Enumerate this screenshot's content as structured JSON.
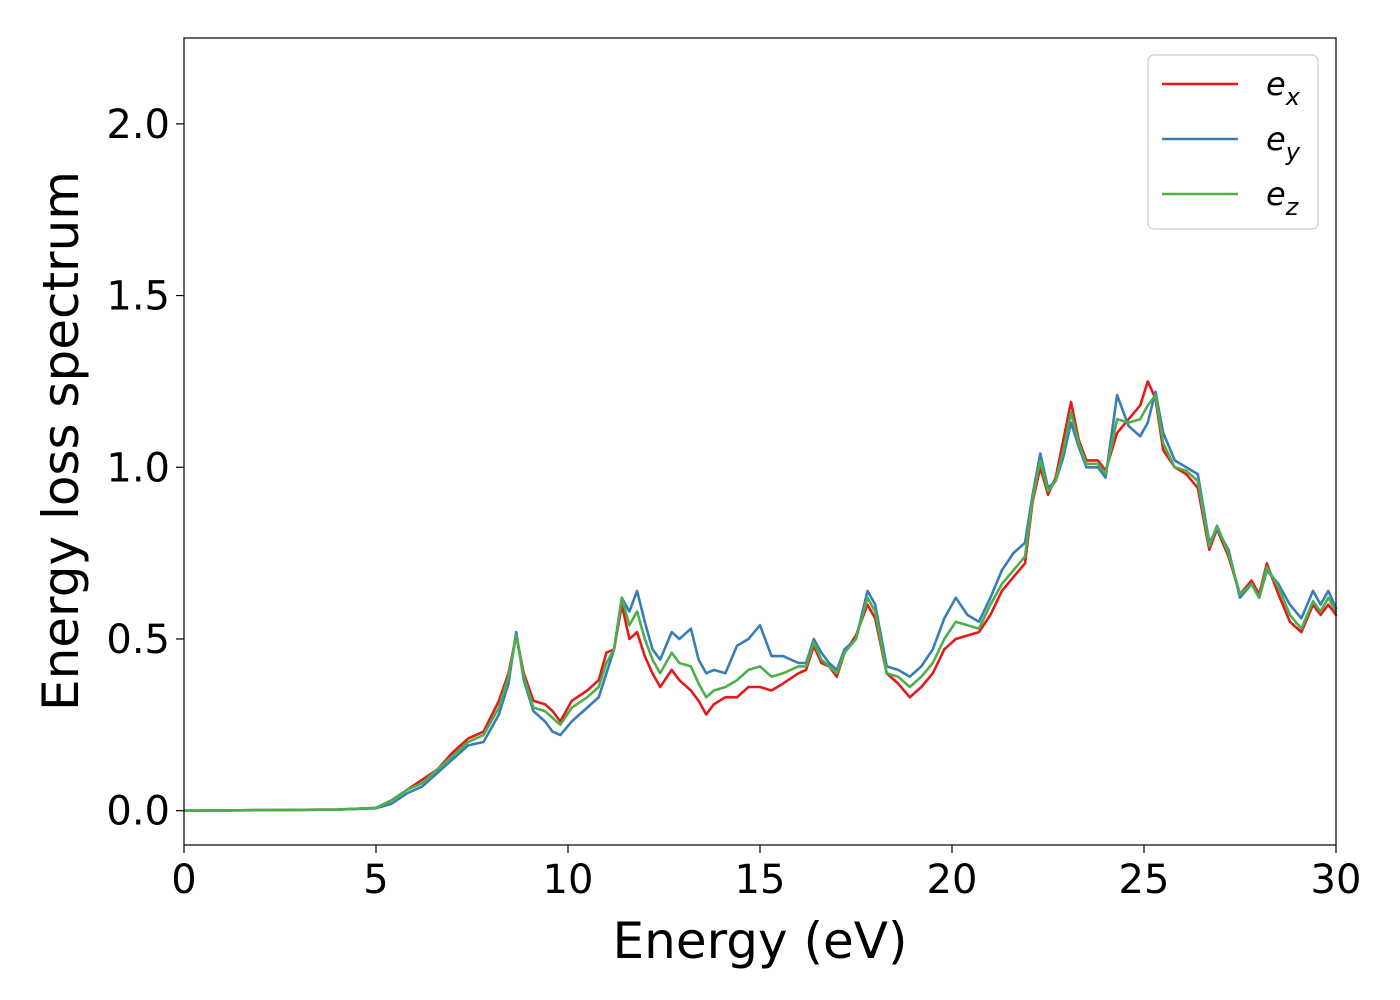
{
  "chart_data": {
    "type": "line",
    "title": "",
    "xlabel": "Energy (eV)",
    "ylabel": "Energy loss spectrum",
    "xlim": [
      0,
      30
    ],
    "ylim": [
      -0.1,
      2.25
    ],
    "x_ticks": [
      0,
      5,
      10,
      15,
      20,
      25,
      30
    ],
    "x_tick_labels": [
      "0",
      "5",
      "10",
      "15",
      "20",
      "25",
      "30"
    ],
    "y_ticks": [
      0.0,
      0.5,
      1.0,
      1.5,
      2.0
    ],
    "y_tick_labels": [
      "0.0",
      "0.5",
      "1.0",
      "1.5",
      "2.0"
    ],
    "grid": false,
    "legend_position": "top-right",
    "series": [
      {
        "name": "e_x",
        "color": "#e41a1c",
        "points": [
          [
            0,
            0
          ],
          [
            4,
            0.003
          ],
          [
            5,
            0.008
          ],
          [
            5.4,
            0.03
          ],
          [
            5.8,
            0.06
          ],
          [
            6.2,
            0.09
          ],
          [
            6.6,
            0.12
          ],
          [
            7.0,
            0.17
          ],
          [
            7.4,
            0.21
          ],
          [
            7.8,
            0.23
          ],
          [
            8.2,
            0.32
          ],
          [
            8.45,
            0.4
          ],
          [
            8.65,
            0.51
          ],
          [
            8.85,
            0.4
          ],
          [
            9.1,
            0.32
          ],
          [
            9.4,
            0.31
          ],
          [
            9.6,
            0.29
          ],
          [
            9.8,
            0.26
          ],
          [
            10.1,
            0.32
          ],
          [
            10.5,
            0.35
          ],
          [
            10.8,
            0.38
          ],
          [
            11.0,
            0.46
          ],
          [
            11.2,
            0.47
          ],
          [
            11.4,
            0.6
          ],
          [
            11.6,
            0.5
          ],
          [
            11.8,
            0.52
          ],
          [
            12.0,
            0.45
          ],
          [
            12.2,
            0.4
          ],
          [
            12.4,
            0.36
          ],
          [
            12.7,
            0.41
          ],
          [
            12.9,
            0.38
          ],
          [
            13.2,
            0.35
          ],
          [
            13.4,
            0.32
          ],
          [
            13.6,
            0.28
          ],
          [
            13.8,
            0.31
          ],
          [
            14.1,
            0.33
          ],
          [
            14.4,
            0.33
          ],
          [
            14.7,
            0.36
          ],
          [
            15.0,
            0.36
          ],
          [
            15.3,
            0.35
          ],
          [
            15.6,
            0.37
          ],
          [
            16.0,
            0.4
          ],
          [
            16.2,
            0.41
          ],
          [
            16.4,
            0.48
          ],
          [
            16.6,
            0.43
          ],
          [
            16.8,
            0.42
          ],
          [
            17.0,
            0.39
          ],
          [
            17.2,
            0.46
          ],
          [
            17.5,
            0.51
          ],
          [
            17.8,
            0.6
          ],
          [
            18.0,
            0.56
          ],
          [
            18.3,
            0.4
          ],
          [
            18.6,
            0.37
          ],
          [
            18.9,
            0.33
          ],
          [
            19.2,
            0.36
          ],
          [
            19.5,
            0.4
          ],
          [
            19.8,
            0.47
          ],
          [
            20.1,
            0.5
          ],
          [
            20.4,
            0.51
          ],
          [
            20.7,
            0.52
          ],
          [
            21.0,
            0.57
          ],
          [
            21.3,
            0.64
          ],
          [
            21.6,
            0.68
          ],
          [
            21.9,
            0.72
          ],
          [
            22.1,
            0.9
          ],
          [
            22.3,
            1.0
          ],
          [
            22.5,
            0.92
          ],
          [
            22.7,
            0.97
          ],
          [
            22.9,
            1.08
          ],
          [
            23.1,
            1.19
          ],
          [
            23.3,
            1.08
          ],
          [
            23.5,
            1.02
          ],
          [
            23.8,
            1.02
          ],
          [
            24.0,
            0.99
          ],
          [
            24.3,
            1.1
          ],
          [
            24.6,
            1.14
          ],
          [
            24.9,
            1.18
          ],
          [
            25.1,
            1.25
          ],
          [
            25.3,
            1.2
          ],
          [
            25.5,
            1.05
          ],
          [
            25.8,
            1.0
          ],
          [
            26.1,
            0.98
          ],
          [
            26.4,
            0.94
          ],
          [
            26.7,
            0.76
          ],
          [
            26.9,
            0.82
          ],
          [
            27.2,
            0.74
          ],
          [
            27.5,
            0.63
          ],
          [
            27.8,
            0.67
          ],
          [
            28.0,
            0.63
          ],
          [
            28.2,
            0.72
          ],
          [
            28.5,
            0.63
          ],
          [
            28.8,
            0.55
          ],
          [
            29.1,
            0.52
          ],
          [
            29.4,
            0.6
          ],
          [
            29.6,
            0.57
          ],
          [
            29.8,
            0.6
          ],
          [
            30.0,
            0.57
          ]
        ]
      },
      {
        "name": "e_y",
        "color": "#377eb8",
        "points": [
          [
            0,
            0
          ],
          [
            4,
            0.003
          ],
          [
            5,
            0.007
          ],
          [
            5.4,
            0.02
          ],
          [
            5.8,
            0.05
          ],
          [
            6.2,
            0.07
          ],
          [
            6.6,
            0.11
          ],
          [
            7.0,
            0.15
          ],
          [
            7.4,
            0.19
          ],
          [
            7.8,
            0.2
          ],
          [
            8.2,
            0.28
          ],
          [
            8.45,
            0.37
          ],
          [
            8.65,
            0.52
          ],
          [
            8.85,
            0.38
          ],
          [
            9.1,
            0.29
          ],
          [
            9.4,
            0.26
          ],
          [
            9.6,
            0.23
          ],
          [
            9.8,
            0.22
          ],
          [
            10.1,
            0.26
          ],
          [
            10.5,
            0.3
          ],
          [
            10.8,
            0.33
          ],
          [
            11.0,
            0.4
          ],
          [
            11.2,
            0.47
          ],
          [
            11.4,
            0.62
          ],
          [
            11.6,
            0.58
          ],
          [
            11.8,
            0.64
          ],
          [
            12.0,
            0.55
          ],
          [
            12.2,
            0.47
          ],
          [
            12.4,
            0.44
          ],
          [
            12.7,
            0.52
          ],
          [
            12.9,
            0.5
          ],
          [
            13.2,
            0.53
          ],
          [
            13.4,
            0.44
          ],
          [
            13.6,
            0.4
          ],
          [
            13.8,
            0.41
          ],
          [
            14.1,
            0.4
          ],
          [
            14.4,
            0.48
          ],
          [
            14.7,
            0.5
          ],
          [
            15.0,
            0.54
          ],
          [
            15.3,
            0.45
          ],
          [
            15.6,
            0.45
          ],
          [
            16.0,
            0.43
          ],
          [
            16.2,
            0.43
          ],
          [
            16.4,
            0.5
          ],
          [
            16.6,
            0.46
          ],
          [
            16.8,
            0.43
          ],
          [
            17.0,
            0.41
          ],
          [
            17.2,
            0.47
          ],
          [
            17.5,
            0.5
          ],
          [
            17.8,
            0.64
          ],
          [
            18.0,
            0.6
          ],
          [
            18.3,
            0.42
          ],
          [
            18.6,
            0.41
          ],
          [
            18.9,
            0.39
          ],
          [
            19.2,
            0.42
          ],
          [
            19.5,
            0.47
          ],
          [
            19.8,
            0.56
          ],
          [
            20.1,
            0.62
          ],
          [
            20.4,
            0.57
          ],
          [
            20.7,
            0.55
          ],
          [
            21.0,
            0.62
          ],
          [
            21.3,
            0.7
          ],
          [
            21.6,
            0.75
          ],
          [
            21.9,
            0.78
          ],
          [
            22.1,
            0.92
          ],
          [
            22.3,
            1.04
          ],
          [
            22.5,
            0.94
          ],
          [
            22.7,
            0.96
          ],
          [
            22.9,
            1.03
          ],
          [
            23.1,
            1.13
          ],
          [
            23.3,
            1.06
          ],
          [
            23.5,
            1.0
          ],
          [
            23.8,
            1.0
          ],
          [
            24.0,
            0.97
          ],
          [
            24.3,
            1.21
          ],
          [
            24.6,
            1.12
          ],
          [
            24.9,
            1.09
          ],
          [
            25.1,
            1.13
          ],
          [
            25.3,
            1.22
          ],
          [
            25.5,
            1.1
          ],
          [
            25.8,
            1.02
          ],
          [
            26.1,
            1.0
          ],
          [
            26.4,
            0.98
          ],
          [
            26.7,
            0.78
          ],
          [
            26.9,
            0.82
          ],
          [
            27.2,
            0.76
          ],
          [
            27.5,
            0.62
          ],
          [
            27.8,
            0.66
          ],
          [
            28.0,
            0.62
          ],
          [
            28.2,
            0.7
          ],
          [
            28.5,
            0.66
          ],
          [
            28.8,
            0.6
          ],
          [
            29.1,
            0.56
          ],
          [
            29.4,
            0.64
          ],
          [
            29.6,
            0.6
          ],
          [
            29.8,
            0.64
          ],
          [
            30.0,
            0.59
          ]
        ]
      },
      {
        "name": "e_z",
        "color": "#4daf4a",
        "points": [
          [
            0,
            0
          ],
          [
            4,
            0.003
          ],
          [
            5,
            0.008
          ],
          [
            5.4,
            0.03
          ],
          [
            5.8,
            0.06
          ],
          [
            6.2,
            0.08
          ],
          [
            6.6,
            0.12
          ],
          [
            7.0,
            0.16
          ],
          [
            7.4,
            0.2
          ],
          [
            7.8,
            0.22
          ],
          [
            8.2,
            0.3
          ],
          [
            8.45,
            0.39
          ],
          [
            8.65,
            0.51
          ],
          [
            8.85,
            0.39
          ],
          [
            9.1,
            0.3
          ],
          [
            9.4,
            0.29
          ],
          [
            9.6,
            0.27
          ],
          [
            9.8,
            0.25
          ],
          [
            10.1,
            0.3
          ],
          [
            10.5,
            0.33
          ],
          [
            10.8,
            0.36
          ],
          [
            11.0,
            0.43
          ],
          [
            11.2,
            0.47
          ],
          [
            11.4,
            0.62
          ],
          [
            11.6,
            0.54
          ],
          [
            11.8,
            0.58
          ],
          [
            12.0,
            0.5
          ],
          [
            12.2,
            0.44
          ],
          [
            12.4,
            0.4
          ],
          [
            12.7,
            0.46
          ],
          [
            12.9,
            0.43
          ],
          [
            13.2,
            0.42
          ],
          [
            13.4,
            0.37
          ],
          [
            13.6,
            0.33
          ],
          [
            13.8,
            0.35
          ],
          [
            14.1,
            0.36
          ],
          [
            14.4,
            0.38
          ],
          [
            14.7,
            0.41
          ],
          [
            15.0,
            0.42
          ],
          [
            15.3,
            0.39
          ],
          [
            15.6,
            0.4
          ],
          [
            16.0,
            0.42
          ],
          [
            16.2,
            0.42
          ],
          [
            16.4,
            0.49
          ],
          [
            16.6,
            0.44
          ],
          [
            16.8,
            0.42
          ],
          [
            17.0,
            0.4
          ],
          [
            17.2,
            0.46
          ],
          [
            17.5,
            0.5
          ],
          [
            17.8,
            0.62
          ],
          [
            18.0,
            0.58
          ],
          [
            18.3,
            0.4
          ],
          [
            18.6,
            0.39
          ],
          [
            18.9,
            0.36
          ],
          [
            19.2,
            0.39
          ],
          [
            19.5,
            0.43
          ],
          [
            19.8,
            0.5
          ],
          [
            20.1,
            0.55
          ],
          [
            20.4,
            0.54
          ],
          [
            20.7,
            0.53
          ],
          [
            21.0,
            0.6
          ],
          [
            21.3,
            0.66
          ],
          [
            21.6,
            0.7
          ],
          [
            21.9,
            0.74
          ],
          [
            22.1,
            0.91
          ],
          [
            22.3,
            1.02
          ],
          [
            22.5,
            0.93
          ],
          [
            22.7,
            0.96
          ],
          [
            22.9,
            1.05
          ],
          [
            23.1,
            1.16
          ],
          [
            23.3,
            1.07
          ],
          [
            23.5,
            1.01
          ],
          [
            23.8,
            1.01
          ],
          [
            24.0,
            0.98
          ],
          [
            24.3,
            1.14
          ],
          [
            24.6,
            1.13
          ],
          [
            24.9,
            1.14
          ],
          [
            25.1,
            1.18
          ],
          [
            25.3,
            1.21
          ],
          [
            25.5,
            1.07
          ],
          [
            25.8,
            1.0
          ],
          [
            26.1,
            0.99
          ],
          [
            26.4,
            0.96
          ],
          [
            26.7,
            0.77
          ],
          [
            26.9,
            0.83
          ],
          [
            27.2,
            0.75
          ],
          [
            27.5,
            0.63
          ],
          [
            27.8,
            0.66
          ],
          [
            28.0,
            0.62
          ],
          [
            28.2,
            0.71
          ],
          [
            28.5,
            0.65
          ],
          [
            28.8,
            0.57
          ],
          [
            29.1,
            0.53
          ],
          [
            29.4,
            0.61
          ],
          [
            29.6,
            0.58
          ],
          [
            29.8,
            0.62
          ],
          [
            30.0,
            0.58
          ]
        ]
      }
    ],
    "legend": [
      {
        "base": "e",
        "sub": "x",
        "color": "#e41a1c"
      },
      {
        "base": "e",
        "sub": "y",
        "color": "#377eb8"
      },
      {
        "base": "e",
        "sub": "z",
        "color": "#4daf4a"
      }
    ]
  }
}
